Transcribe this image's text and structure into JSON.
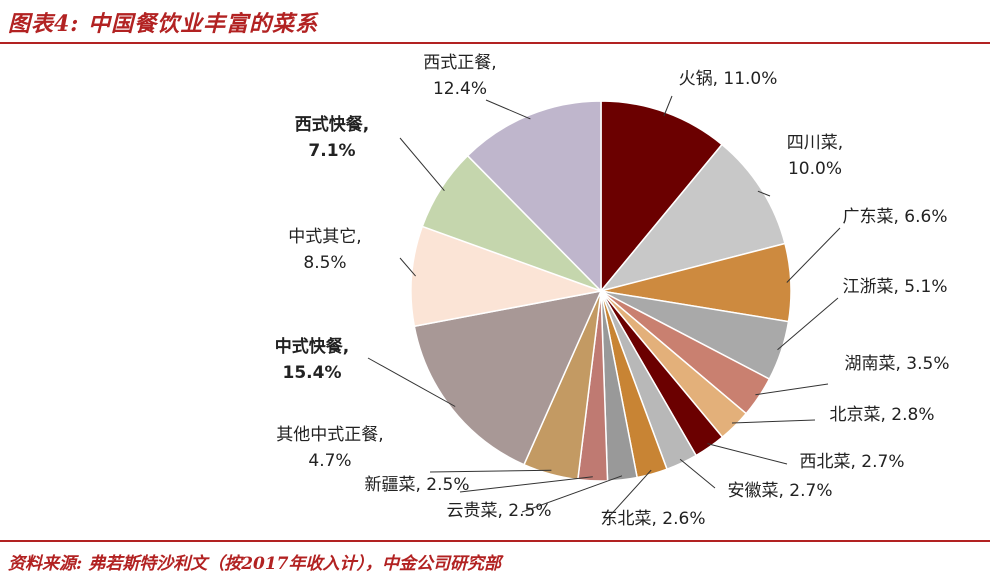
{
  "header": {
    "title": "图表4: 中国餐饮业丰富的菜系"
  },
  "source": {
    "text": "资料来源: 弗若斯特沙利文（按2017年收入计），中金公司研究部"
  },
  "chart_data": {
    "type": "pie",
    "title": "",
    "slices": [
      {
        "label": "火锅",
        "value": 11.0,
        "display": "11.0%",
        "color": "#6b0000"
      },
      {
        "label": "四川菜",
        "value": 10.0,
        "display": "10.0%",
        "color": "#c8c8c8"
      },
      {
        "label": "广东菜",
        "value": 6.6,
        "display": "6.6%",
        "color": "#cd8a3f"
      },
      {
        "label": "江浙菜",
        "value": 5.1,
        "display": "5.1%",
        "color": "#a9a9a9"
      },
      {
        "label": "湖南菜",
        "value": 3.5,
        "display": "3.5%",
        "color": "#c98070"
      },
      {
        "label": "北京菜",
        "value": 2.8,
        "display": "2.8%",
        "color": "#e3b07a"
      },
      {
        "label": "西北菜",
        "value": 2.7,
        "display": "2.7%",
        "color": "#6b0000"
      },
      {
        "label": "安徽菜",
        "value": 2.7,
        "display": "2.7%",
        "color": "#b8b8b8"
      },
      {
        "label": "东北菜",
        "value": 2.6,
        "display": "2.6%",
        "color": "#c88434"
      },
      {
        "label": "云贵菜",
        "value": 2.5,
        "display": "2.5%",
        "color": "#999999"
      },
      {
        "label": "新疆菜",
        "value": 2.5,
        "display": "2.5%",
        "color": "#bf7a72"
      },
      {
        "label": "其他中式正餐",
        "value": 4.7,
        "display": "4.7%",
        "color": "#c39a63"
      },
      {
        "label": "中式快餐",
        "value": 15.4,
        "display": "15.4%",
        "color": "#a89896",
        "highlight": "#b22222"
      },
      {
        "label": "中式其它",
        "value": 8.5,
        "display": "8.5%",
        "color": "#fbe4d6"
      },
      {
        "label": "西式快餐",
        "value": 7.1,
        "display": "7.1%",
        "color": "#c5d6ad",
        "highlight": "#5f8a2e"
      },
      {
        "label": "西式正餐",
        "value": 12.4,
        "display": "12.4%",
        "color": "#bfb6cc"
      }
    ]
  }
}
